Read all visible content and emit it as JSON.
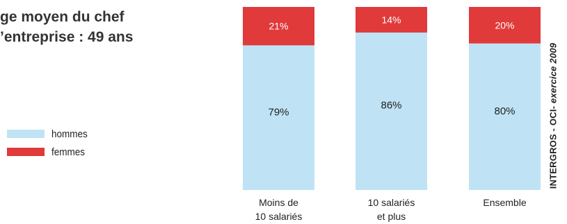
{
  "header": {
    "title_line1": "ge moyen du chef",
    "title_line2": "’entreprise : 49 ans"
  },
  "legend": {
    "items": [
      {
        "label": "hommes",
        "color": "#bfe3f5"
      },
      {
        "label": "femmes",
        "color": "#e03a3a"
      }
    ]
  },
  "source": {
    "main": "INTERGROS - OCI- ",
    "italic": "exercice 2009"
  },
  "chart_data": {
    "type": "bar",
    "stacked": true,
    "percent": true,
    "categories": [
      [
        "Moins de",
        "10 salariés"
      ],
      [
        "10 salariés",
        "et plus"
      ],
      [
        "Ensemble"
      ]
    ],
    "series": [
      {
        "name": "hommes",
        "color": "#bfe3f5",
        "values": [
          79,
          86,
          80
        ],
        "labels": [
          "79%",
          "86%",
          "80%"
        ]
      },
      {
        "name": "femmes",
        "color": "#e03a3a",
        "values": [
          21,
          14,
          20
        ],
        "labels": [
          "21%",
          "14%",
          "20%"
        ]
      }
    ],
    "ylim": [
      0,
      100
    ]
  }
}
